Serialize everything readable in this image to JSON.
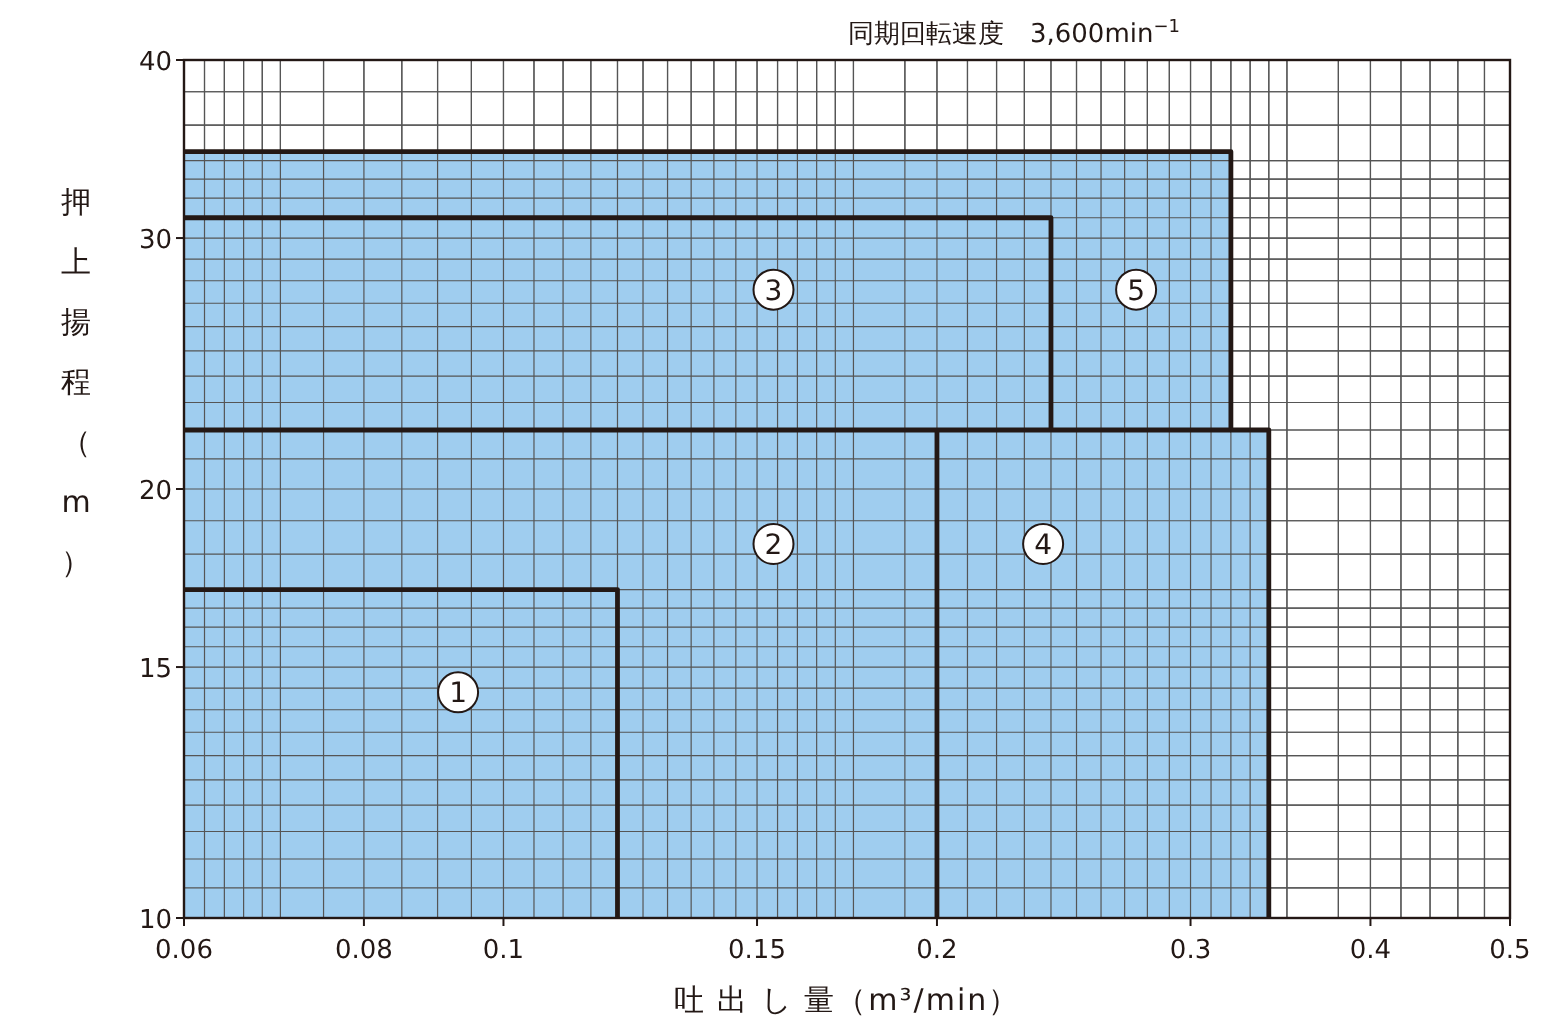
{
  "chart_data": {
    "type": "area",
    "log": "xy",
    "xlim": [
      0.06,
      0.5
    ],
    "ylim": [
      10,
      40
    ],
    "xticks": [
      0.06,
      0.08,
      0.1,
      0.15,
      0.2,
      0.3,
      0.4,
      0.5
    ],
    "yticks": [
      10,
      15,
      20,
      30,
      40
    ],
    "grid": true,
    "xlabel": "吐 出 し 量（m³/min）",
    "ylabel": "押上揚程（m）",
    "subtitle": "同期回転速度　3,600min$^{−1}$",
    "series": [
      {
        "color": "#9fcdef",
        "x": [
          0.06,
          0.32,
          0.32,
          0.34,
          0.34
        ],
        "values": [
          34.5,
          34.5,
          22,
          22,
          10
        ]
      },
      {
        "type": "line",
        "color": "#231815",
        "x": [
          0.06,
          0.24,
          0.24
        ],
        "values": [
          31,
          31,
          22
        ]
      },
      {
        "type": "line",
        "color": "#231815",
        "x": [
          0.06,
          0.32
        ],
        "values": [
          22,
          22
        ]
      },
      {
        "type": "line",
        "color": "#231815",
        "x": [
          0.2,
          0.2
        ],
        "values": [
          22,
          10
        ]
      },
      {
        "type": "line",
        "color": "#231815",
        "x": [
          0.06,
          0.12,
          0.12
        ],
        "values": [
          17,
          17,
          10
        ]
      }
    ],
    "annotations": [
      {
        "text": "1",
        "x": 0.093,
        "y": 14.4
      },
      {
        "text": "2",
        "x": 0.154,
        "y": 18.3
      },
      {
        "text": "3",
        "x": 0.154,
        "y": 27.6
      },
      {
        "text": "4",
        "x": 0.237,
        "y": 18.3
      },
      {
        "text": "5",
        "x": 0.275,
        "y": 27.6
      }
    ]
  }
}
